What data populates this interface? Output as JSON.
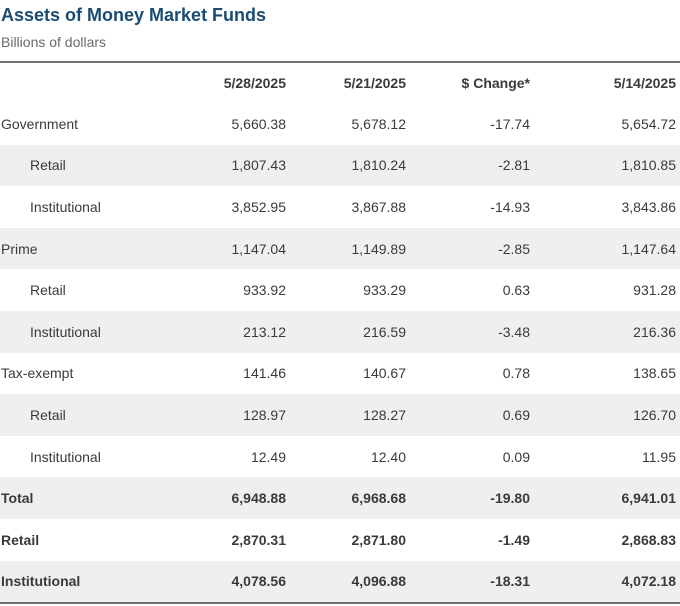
{
  "title": "Assets of Money Market Funds",
  "subtitle": "Billions of dollars",
  "columns": [
    "",
    "5/28/2025",
    "5/21/2025",
    "$ Change*",
    "5/14/2025"
  ],
  "rows": [
    {
      "label": "Government",
      "indent": false,
      "bold": false,
      "values": [
        "5,660.38",
        "5,678.12",
        "-17.74",
        "5,654.72"
      ]
    },
    {
      "label": "Retail",
      "indent": true,
      "bold": false,
      "values": [
        "1,807.43",
        "1,810.24",
        "-2.81",
        "1,810.85"
      ]
    },
    {
      "label": "Institutional",
      "indent": true,
      "bold": false,
      "values": [
        "3,852.95",
        "3,867.88",
        "-14.93",
        "3,843.86"
      ]
    },
    {
      "label": "Prime",
      "indent": false,
      "bold": false,
      "values": [
        "1,147.04",
        "1,149.89",
        "-2.85",
        "1,147.64"
      ]
    },
    {
      "label": "Retail",
      "indent": true,
      "bold": false,
      "values": [
        "933.92",
        "933.29",
        "0.63",
        "931.28"
      ]
    },
    {
      "label": "Institutional",
      "indent": true,
      "bold": false,
      "values": [
        "213.12",
        "216.59",
        "-3.48",
        "216.36"
      ]
    },
    {
      "label": "Tax-exempt",
      "indent": false,
      "bold": false,
      "values": [
        "141.46",
        "140.67",
        "0.78",
        "138.65"
      ]
    },
    {
      "label": "Retail",
      "indent": true,
      "bold": false,
      "values": [
        "128.97",
        "128.27",
        "0.69",
        "126.70"
      ]
    },
    {
      "label": "Institutional",
      "indent": true,
      "bold": false,
      "values": [
        "12.49",
        "12.40",
        "0.09",
        "11.95"
      ]
    },
    {
      "label": "Total",
      "indent": false,
      "bold": true,
      "values": [
        "6,948.88",
        "6,968.68",
        "-19.80",
        "6,941.01"
      ]
    },
    {
      "label": "Retail",
      "indent": false,
      "bold": true,
      "values": [
        "2,870.31",
        "2,871.80",
        "-1.49",
        "2,868.83"
      ]
    },
    {
      "label": "Institutional",
      "indent": false,
      "bold": true,
      "values": [
        "4,078.56",
        "4,096.88",
        "-18.31",
        "4,072.18"
      ]
    }
  ]
}
